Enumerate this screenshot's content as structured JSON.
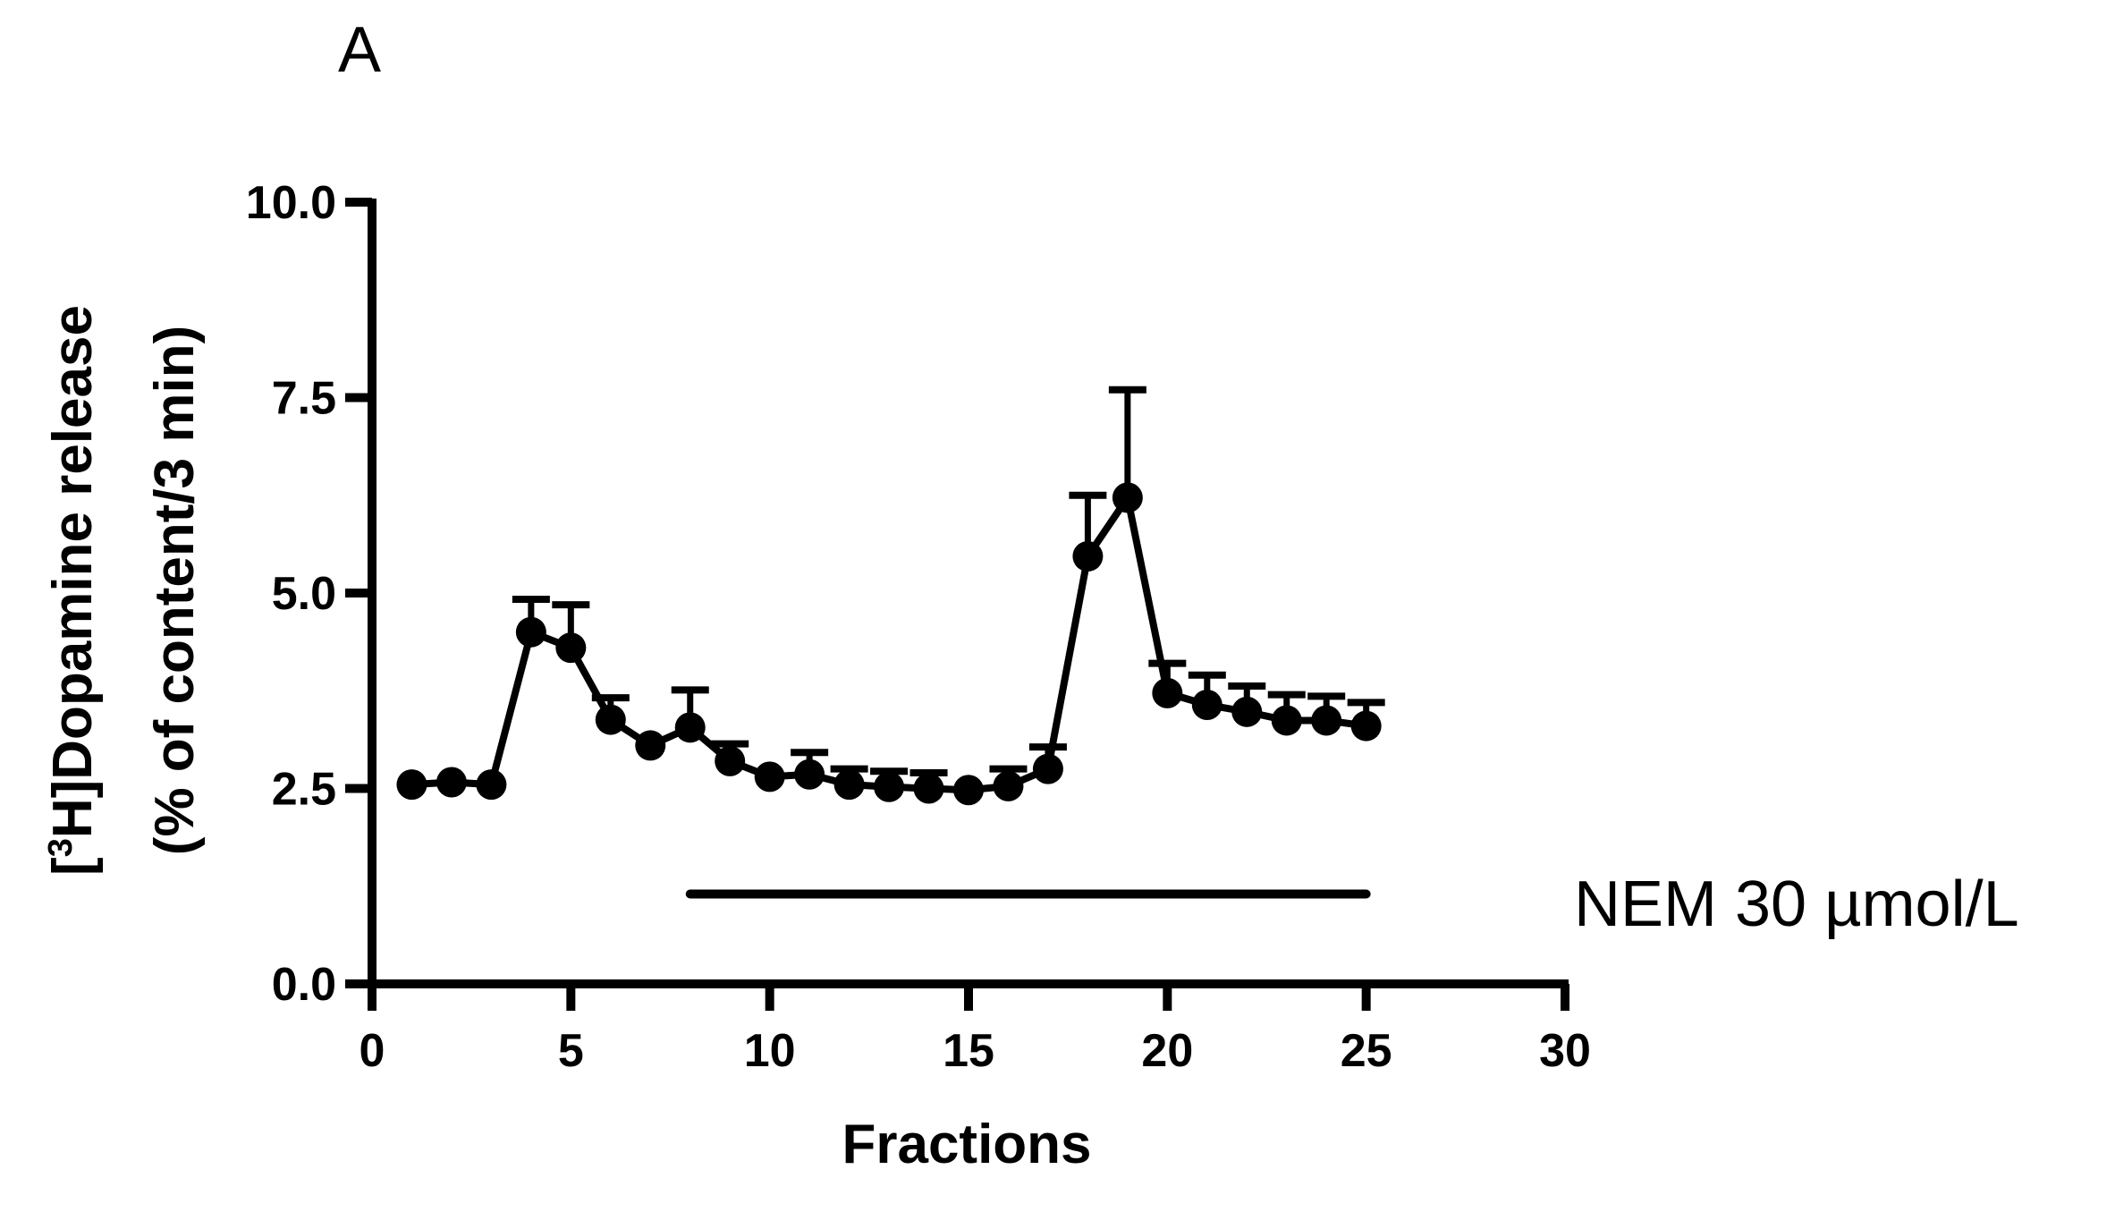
{
  "chart_data": {
    "type": "line",
    "panel_label": "A",
    "title": "",
    "xlabel": "Fractions",
    "ylabel_line1_prefix": "[",
    "ylabel_line1_sup": "3",
    "ylabel_line1_rest": "H]Dopamine release",
    "ylabel_line2": "(% of content/3 min)",
    "xlim": [
      0,
      30
    ],
    "ylim": [
      0,
      10
    ],
    "x_ticks": [
      0,
      5,
      10,
      15,
      20,
      25,
      30
    ],
    "x_tick_labels": [
      "0",
      "5",
      "10",
      "15",
      "20",
      "25",
      "30"
    ],
    "y_ticks": [
      0,
      2.5,
      5,
      7.5,
      10
    ],
    "y_tick_labels": [
      "0.0",
      "2.5",
      "5.0",
      "7.5",
      "10.0"
    ],
    "grid": false,
    "legend": "none",
    "series": [
      {
        "x": [
          1,
          2,
          3,
          4,
          5,
          6,
          7,
          8,
          9,
          10,
          11,
          12,
          13,
          14,
          15,
          16,
          17,
          18,
          19,
          20,
          21,
          22,
          23,
          24,
          25
        ],
        "values": [
          2.55,
          2.58,
          2.55,
          4.5,
          4.3,
          3.38,
          3.05,
          3.28,
          2.85,
          2.65,
          2.68,
          2.55,
          2.52,
          2.5,
          2.48,
          2.53,
          2.75,
          5.47,
          6.22,
          3.72,
          3.57,
          3.48,
          3.37,
          3.37,
          3.3
        ],
        "error_upper": [
          0,
          0,
          0,
          0.42,
          0.55,
          0.28,
          0,
          0.48,
          0.22,
          0,
          0.28,
          0.2,
          0.2,
          0.2,
          0,
          0.22,
          0.28,
          0.78,
          1.38,
          0.38,
          0.38,
          0.33,
          0.33,
          0.31,
          0.3
        ]
      }
    ],
    "treatment_bar": {
      "x_start": 8,
      "x_end": 25,
      "y": 1.15,
      "label": "NEM 30 µmol/L"
    },
    "color": "#000000"
  }
}
